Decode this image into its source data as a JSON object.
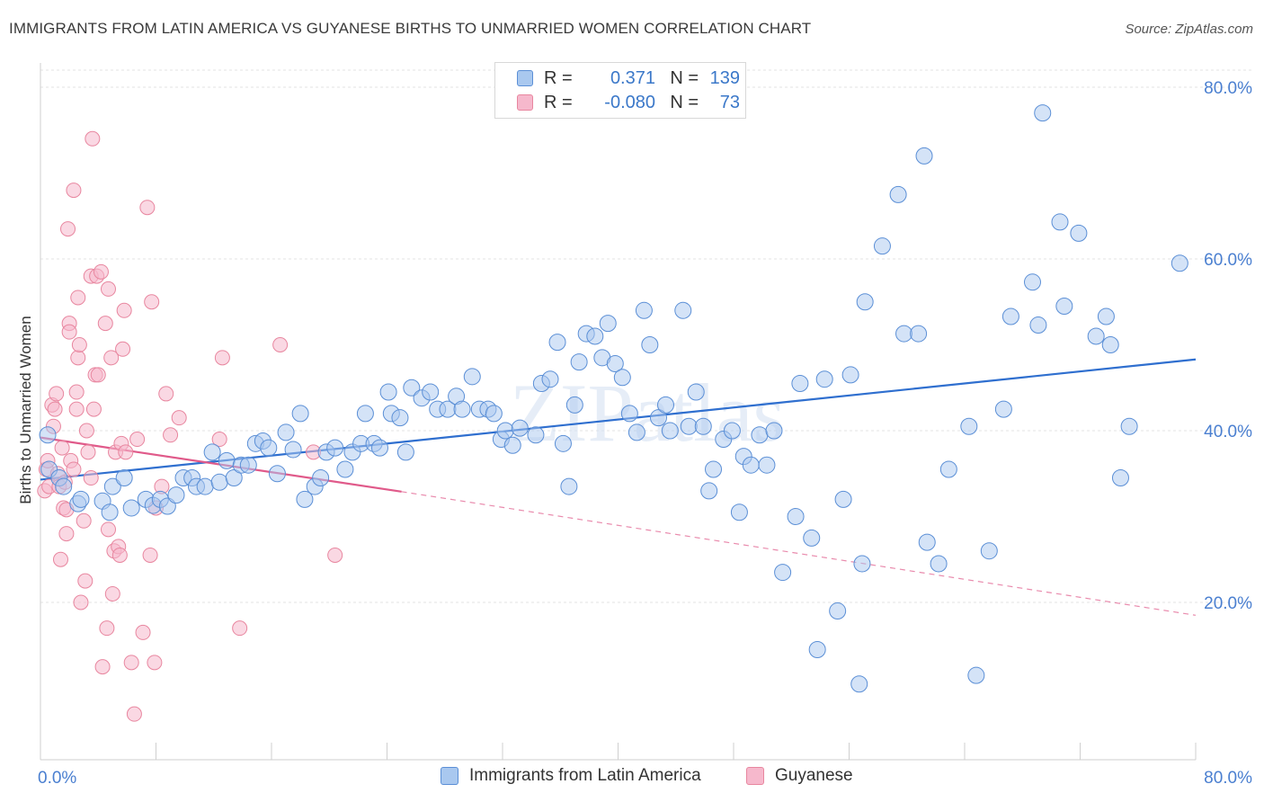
{
  "title": "IMMIGRANTS FROM LATIN AMERICA VS GUYANESE BIRTHS TO UNMARRIED WOMEN CORRELATION CHART",
  "source": "Source: ZipAtlas.com",
  "watermark": "ZIPatlas",
  "legend": {
    "rows": [
      {
        "r_label": "R =",
        "r_value": "0.371",
        "n_label": "N =",
        "n_value": "139"
      },
      {
        "r_label": "R =",
        "r_value": "-0.080",
        "n_label": "N =",
        "n_value": "73"
      }
    ]
  },
  "bottom_legend": [
    "Immigrants from Latin America",
    "Guyanese"
  ],
  "colors": {
    "blue_fill": "#a9c8ef",
    "blue_stroke": "#5b8fd6",
    "blue_line": "#2f6fcf",
    "pink_fill": "#f6b8cc",
    "pink_stroke": "#e8869f",
    "pink_line": "#e05a8a",
    "axis_text": "#4a7fd0",
    "grid": "#e3e3e3"
  },
  "chart_data": {
    "type": "scatter",
    "title": "IMMIGRANTS FROM LATIN AMERICA VS GUYANESE BIRTHS TO UNMARRIED WOMEN CORRELATION CHART",
    "xlabel": "",
    "ylabel": "Births to Unmarried Women",
    "xlim": [
      0,
      80
    ],
    "ylim": [
      0,
      82
    ],
    "x_tick_labels": [
      "0.0%",
      "80.0%"
    ],
    "y_ticks": [
      20,
      40,
      60,
      80
    ],
    "y_tick_labels": [
      "20.0%",
      "40.0%",
      "60.0%",
      "80.0%"
    ],
    "grid": true,
    "legend_position": "top-center",
    "series": [
      {
        "name": "Immigrants from Latin America",
        "color": "#5b8fd6",
        "trend": {
          "x": [
            0,
            80
          ],
          "y": [
            34.3,
            48.3
          ],
          "style": "solid"
        },
        "points": [
          [
            0.5,
            39.5
          ],
          [
            0.6,
            35.5
          ],
          [
            1.3,
            34.5
          ],
          [
            1.6,
            33.5
          ],
          [
            2.6,
            31.5
          ],
          [
            2.8,
            32.0
          ],
          [
            4.3,
            31.8
          ],
          [
            4.8,
            30.5
          ],
          [
            5.0,
            33.5
          ],
          [
            5.8,
            34.5
          ],
          [
            6.3,
            31.0
          ],
          [
            7.3,
            32.0
          ],
          [
            7.8,
            31.3
          ],
          [
            8.3,
            32.0
          ],
          [
            8.8,
            31.2
          ],
          [
            9.4,
            32.5
          ],
          [
            9.9,
            34.5
          ],
          [
            10.5,
            34.5
          ],
          [
            10.8,
            33.5
          ],
          [
            11.4,
            33.5
          ],
          [
            11.9,
            37.5
          ],
          [
            12.4,
            34.0
          ],
          [
            12.9,
            36.5
          ],
          [
            13.4,
            34.5
          ],
          [
            13.9,
            36.0
          ],
          [
            14.4,
            36.0
          ],
          [
            14.9,
            38.5
          ],
          [
            15.4,
            38.8
          ],
          [
            15.8,
            38.0
          ],
          [
            16.4,
            35.0
          ],
          [
            17.0,
            39.8
          ],
          [
            17.5,
            37.8
          ],
          [
            18.0,
            42.0
          ],
          [
            18.3,
            32.0
          ],
          [
            19.0,
            33.5
          ],
          [
            19.4,
            34.5
          ],
          [
            19.8,
            37.5
          ],
          [
            20.4,
            38.0
          ],
          [
            21.1,
            35.5
          ],
          [
            21.6,
            37.5
          ],
          [
            22.2,
            38.5
          ],
          [
            22.5,
            42.0
          ],
          [
            23.1,
            38.5
          ],
          [
            23.5,
            38.0
          ],
          [
            24.1,
            44.5
          ],
          [
            24.3,
            42.0
          ],
          [
            24.9,
            41.5
          ],
          [
            25.3,
            37.5
          ],
          [
            25.7,
            45.0
          ],
          [
            26.4,
            43.8
          ],
          [
            27.0,
            44.5
          ],
          [
            27.5,
            42.5
          ],
          [
            28.2,
            42.5
          ],
          [
            28.8,
            44.0
          ],
          [
            29.2,
            42.5
          ],
          [
            29.9,
            46.3
          ],
          [
            30.4,
            42.5
          ],
          [
            31.0,
            42.5
          ],
          [
            31.4,
            42.0
          ],
          [
            31.9,
            39.0
          ],
          [
            32.2,
            40.0
          ],
          [
            32.7,
            38.3
          ],
          [
            33.2,
            40.3
          ],
          [
            34.3,
            39.5
          ],
          [
            34.7,
            45.5
          ],
          [
            35.3,
            46.0
          ],
          [
            35.8,
            50.3
          ],
          [
            36.2,
            38.5
          ],
          [
            36.6,
            33.5
          ],
          [
            37.0,
            43.0
          ],
          [
            37.3,
            48.0
          ],
          [
            37.8,
            51.3
          ],
          [
            38.4,
            51.0
          ],
          [
            38.9,
            48.5
          ],
          [
            39.3,
            52.5
          ],
          [
            39.8,
            47.8
          ],
          [
            40.3,
            46.2
          ],
          [
            40.8,
            42.0
          ],
          [
            41.3,
            39.8
          ],
          [
            41.8,
            54.0
          ],
          [
            42.2,
            50.0
          ],
          [
            42.8,
            41.5
          ],
          [
            43.3,
            43.0
          ],
          [
            43.6,
            40.0
          ],
          [
            44.5,
            54.0
          ],
          [
            44.9,
            40.5
          ],
          [
            45.4,
            44.5
          ],
          [
            45.9,
            40.5
          ],
          [
            46.3,
            33.0
          ],
          [
            46.6,
            35.5
          ],
          [
            47.3,
            39.0
          ],
          [
            47.9,
            40.0
          ],
          [
            48.4,
            30.5
          ],
          [
            48.7,
            37.0
          ],
          [
            49.2,
            36.0
          ],
          [
            49.8,
            39.5
          ],
          [
            50.3,
            36.0
          ],
          [
            50.8,
            40.0
          ],
          [
            51.4,
            23.5
          ],
          [
            52.3,
            30.0
          ],
          [
            52.6,
            45.5
          ],
          [
            53.4,
            27.5
          ],
          [
            53.8,
            14.5
          ],
          [
            54.3,
            46.0
          ],
          [
            55.2,
            19.0
          ],
          [
            55.6,
            32.0
          ],
          [
            56.1,
            46.5
          ],
          [
            56.7,
            10.5
          ],
          [
            56.9,
            24.5
          ],
          [
            57.1,
            55.0
          ],
          [
            58.3,
            61.5
          ],
          [
            59.4,
            67.5
          ],
          [
            59.8,
            51.3
          ],
          [
            60.8,
            51.3
          ],
          [
            61.2,
            72.0
          ],
          [
            61.4,
            27.0
          ],
          [
            62.2,
            24.5
          ],
          [
            62.9,
            35.5
          ],
          [
            64.3,
            40.5
          ],
          [
            64.8,
            11.5
          ],
          [
            65.7,
            26.0
          ],
          [
            66.7,
            42.5
          ],
          [
            67.2,
            53.3
          ],
          [
            68.7,
            57.3
          ],
          [
            69.1,
            52.3
          ],
          [
            69.4,
            77.0
          ],
          [
            70.6,
            64.3
          ],
          [
            70.9,
            54.5
          ],
          [
            71.9,
            63.0
          ],
          [
            73.1,
            51.0
          ],
          [
            73.8,
            53.3
          ],
          [
            74.1,
            50.0
          ],
          [
            74.8,
            34.5
          ],
          [
            75.4,
            40.5
          ],
          [
            78.9,
            59.5
          ]
        ]
      },
      {
        "name": "Guyanese",
        "color": "#e8869f",
        "trend": {
          "x": [
            0,
            25
          ],
          "y": [
            39.2,
            32.9
          ],
          "style": "solid",
          "extension": {
            "x": [
              25,
              80
            ],
            "y": [
              32.9,
              18.5
            ],
            "style": "dashed"
          }
        },
        "points": [
          [
            0.3,
            33.0
          ],
          [
            0.4,
            35.5
          ],
          [
            0.5,
            36.5
          ],
          [
            0.6,
            33.5
          ],
          [
            0.8,
            43.0
          ],
          [
            0.9,
            40.5
          ],
          [
            1.0,
            42.5
          ],
          [
            1.1,
            44.3
          ],
          [
            1.2,
            35.0
          ],
          [
            1.3,
            33.5
          ],
          [
            1.4,
            25.0
          ],
          [
            1.5,
            38.0
          ],
          [
            1.6,
            31.0
          ],
          [
            1.7,
            34.0
          ],
          [
            1.8,
            28.0
          ],
          [
            1.8,
            30.8
          ],
          [
            1.9,
            63.5
          ],
          [
            2.0,
            52.5
          ],
          [
            2.0,
            51.5
          ],
          [
            2.1,
            36.5
          ],
          [
            2.3,
            68.0
          ],
          [
            2.3,
            35.5
          ],
          [
            2.5,
            42.5
          ],
          [
            2.5,
            44.5
          ],
          [
            2.6,
            48.5
          ],
          [
            2.6,
            55.5
          ],
          [
            2.7,
            50.0
          ],
          [
            2.8,
            20.0
          ],
          [
            3.0,
            29.5
          ],
          [
            3.1,
            22.5
          ],
          [
            3.2,
            40.0
          ],
          [
            3.3,
            37.5
          ],
          [
            3.5,
            58.0
          ],
          [
            3.5,
            34.5
          ],
          [
            3.6,
            74.0
          ],
          [
            3.7,
            42.5
          ],
          [
            3.8,
            46.5
          ],
          [
            3.9,
            58.0
          ],
          [
            4.0,
            46.5
          ],
          [
            4.2,
            58.5
          ],
          [
            4.3,
            12.5
          ],
          [
            4.5,
            52.5
          ],
          [
            4.6,
            17.0
          ],
          [
            4.7,
            28.5
          ],
          [
            4.7,
            56.5
          ],
          [
            4.9,
            48.5
          ],
          [
            5.0,
            21.0
          ],
          [
            5.1,
            26.0
          ],
          [
            5.2,
            37.5
          ],
          [
            5.4,
            26.5
          ],
          [
            5.5,
            25.5
          ],
          [
            5.6,
            38.5
          ],
          [
            5.7,
            49.5
          ],
          [
            5.8,
            54.0
          ],
          [
            5.9,
            37.5
          ],
          [
            6.3,
            13.0
          ],
          [
            6.5,
            7.0
          ],
          [
            6.7,
            39.0
          ],
          [
            7.1,
            16.5
          ],
          [
            7.4,
            66.0
          ],
          [
            7.6,
            25.5
          ],
          [
            7.7,
            55.0
          ],
          [
            7.9,
            13.0
          ],
          [
            8.0,
            31.0
          ],
          [
            8.4,
            33.5
          ],
          [
            8.7,
            44.3
          ],
          [
            9.0,
            39.5
          ],
          [
            9.6,
            41.5
          ],
          [
            12.4,
            39.0
          ],
          [
            12.6,
            48.5
          ],
          [
            13.8,
            17.0
          ],
          [
            16.6,
            50.0
          ],
          [
            18.9,
            37.5
          ],
          [
            20.4,
            25.5
          ]
        ]
      }
    ]
  }
}
